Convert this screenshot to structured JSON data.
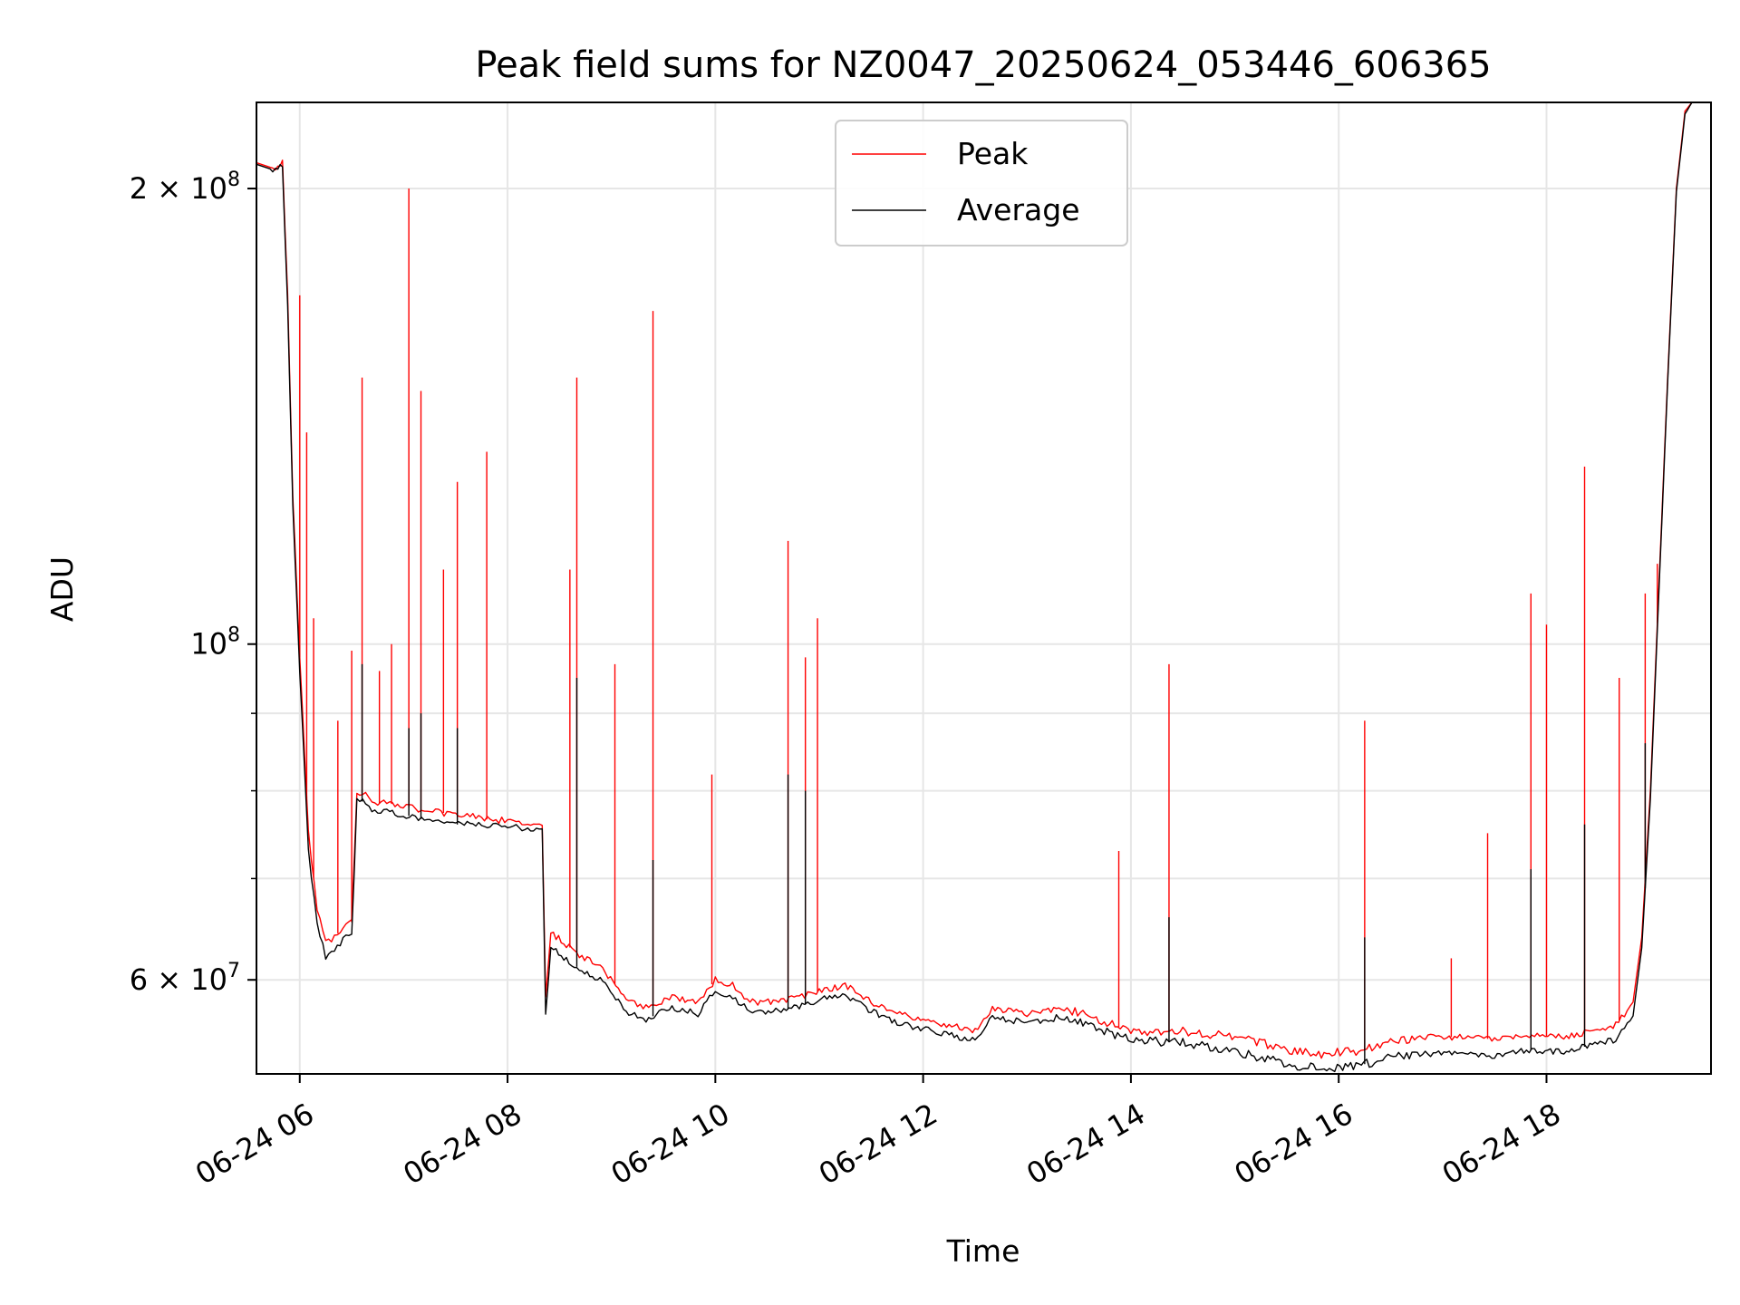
{
  "chart_data": {
    "type": "line",
    "title": "Peak field sums for NZ0047_20250624_053446_606365",
    "xlabel": "Time",
    "ylabel": "ADU",
    "yscale": "log",
    "grid": true,
    "legend_position": "upper center",
    "xlim": [
      "2025-06-24 05:35",
      "2025-06-24 19:35"
    ],
    "ylim": [
      52000000,
      228000000
    ],
    "x_ticks": [
      {
        "value": "2025-06-24 06:00",
        "label": "06-24 06"
      },
      {
        "value": "2025-06-24 08:00",
        "label": "06-24 08"
      },
      {
        "value": "2025-06-24 10:00",
        "label": "06-24 10"
      },
      {
        "value": "2025-06-24 12:00",
        "label": "06-24 12"
      },
      {
        "value": "2025-06-24 14:00",
        "label": "06-24 14"
      },
      {
        "value": "2025-06-24 16:00",
        "label": "06-24 16"
      },
      {
        "value": "2025-06-24 18:00",
        "label": "06-24 18"
      }
    ],
    "y_major_ticks": [
      {
        "value": 60000000,
        "mantissa": "6",
        "base": "10",
        "exp": "7"
      },
      {
        "value": 100000000,
        "mantissa": "",
        "base": "10",
        "exp": "8"
      },
      {
        "value": 200000000,
        "mantissa": "2",
        "base": "10",
        "exp": "8"
      }
    ],
    "y_minor_ticks": [
      70000000,
      80000000,
      90000000
    ],
    "series": [
      {
        "name": "Peak",
        "color": "#ff0000",
        "x": [
          "2025-06-24 05:35",
          "2025-06-24 05:46",
          "2025-06-24 05:50",
          "2025-06-24 05:53",
          "2025-06-24 05:56",
          "2025-06-24 06:00",
          "2025-06-24 06:05",
          "2025-06-24 06:10",
          "2025-06-24 06:15",
          "2025-06-24 06:20",
          "2025-06-24 06:25",
          "2025-06-24 06:30",
          "2025-06-24 06:33",
          "2025-06-24 06:38",
          "2025-06-24 06:40",
          "2025-06-24 06:45",
          "2025-06-24 06:52",
          "2025-06-24 06:58",
          "2025-06-24 07:05",
          "2025-06-24 07:12",
          "2025-06-24 07:20",
          "2025-06-24 07:30",
          "2025-06-24 07:40",
          "2025-06-24 07:50",
          "2025-06-24 08:00",
          "2025-06-24 08:10",
          "2025-06-24 08:20",
          "2025-06-24 08:22",
          "2025-06-24 08:25",
          "2025-06-24 08:40",
          "2025-06-24 08:55",
          "2025-06-24 09:10",
          "2025-06-24 09:20",
          "2025-06-24 09:35",
          "2025-06-24 09:50",
          "2025-06-24 10:00",
          "2025-06-24 10:10",
          "2025-06-24 10:20",
          "2025-06-24 10:35",
          "2025-06-24 10:50",
          "2025-06-24 11:00",
          "2025-06-24 11:15",
          "2025-06-24 11:30",
          "2025-06-24 11:45",
          "2025-06-24 12:00",
          "2025-06-24 12:15",
          "2025-06-24 12:30",
          "2025-06-24 12:40",
          "2025-06-24 13:00",
          "2025-06-24 13:20",
          "2025-06-24 13:40",
          "2025-06-24 14:00",
          "2025-06-24 14:30",
          "2025-06-24 15:00",
          "2025-06-24 15:30",
          "2025-06-24 15:50",
          "2025-06-24 16:10",
          "2025-06-24 16:30",
          "2025-06-24 16:50",
          "2025-06-24 17:10",
          "2025-06-24 17:30",
          "2025-06-24 17:50",
          "2025-06-24 18:10",
          "2025-06-24 18:25",
          "2025-06-24 18:40",
          "2025-06-24 18:50",
          "2025-06-24 18:55",
          "2025-06-24 19:00",
          "2025-06-24 19:05",
          "2025-06-24 19:10",
          "2025-06-24 19:15",
          "2025-06-24 19:20",
          "2025-06-24 19:24",
          "2025-06-24 19:28"
        ],
        "y": [
          208000000,
          206000000,
          208000000,
          170000000,
          125000000,
          98000000,
          75000000,
          67000000,
          63500000,
          64000000,
          65000000,
          65500000,
          80000000,
          79500000,
          79000000,
          78500000,
          78500000,
          78000000,
          78000000,
          77500000,
          77500000,
          77000000,
          77000000,
          76500000,
          76500000,
          76000000,
          76000000,
          58500000,
          64500000,
          62500000,
          61000000,
          58000000,
          57500000,
          58500000,
          58000000,
          60000000,
          59500000,
          58000000,
          58000000,
          58500000,
          59000000,
          59500000,
          58000000,
          57000000,
          56500000,
          56000000,
          55500000,
          57500000,
          57000000,
          57500000,
          56500000,
          55500000,
          55500000,
          55000000,
          54000000,
          53600000,
          53800000,
          54500000,
          55000000,
          55000000,
          54800000,
          55200000,
          55000000,
          55500000,
          56000000,
          58000000,
          64000000,
          80000000,
          110000000,
          150000000,
          200000000,
          225000000,
          228000000,
          228000000
        ],
        "spikes": [
          {
            "x": "2025-06-24 06:00",
            "y": 170000000
          },
          {
            "x": "2025-06-24 06:04",
            "y": 138000000
          },
          {
            "x": "2025-06-24 06:08",
            "y": 104000000
          },
          {
            "x": "2025-06-24 06:22",
            "y": 89000000
          },
          {
            "x": "2025-06-24 06:30",
            "y": 99000000
          },
          {
            "x": "2025-06-24 06:36",
            "y": 150000000
          },
          {
            "x": "2025-06-24 06:46",
            "y": 96000000
          },
          {
            "x": "2025-06-24 06:53",
            "y": 100000000
          },
          {
            "x": "2025-06-24 07:03",
            "y": 200000000
          },
          {
            "x": "2025-06-24 07:10",
            "y": 147000000
          },
          {
            "x": "2025-06-24 07:23",
            "y": 112000000
          },
          {
            "x": "2025-06-24 07:31",
            "y": 128000000
          },
          {
            "x": "2025-06-24 07:48",
            "y": 134000000
          },
          {
            "x": "2025-06-24 08:36",
            "y": 112000000
          },
          {
            "x": "2025-06-24 08:40",
            "y": 150000000
          },
          {
            "x": "2025-06-24 09:02",
            "y": 97000000
          },
          {
            "x": "2025-06-24 09:24",
            "y": 166000000
          },
          {
            "x": "2025-06-24 09:58",
            "y": 82000000
          },
          {
            "x": "2025-06-24 10:42",
            "y": 117000000
          },
          {
            "x": "2025-06-24 10:52",
            "y": 98000000
          },
          {
            "x": "2025-06-24 10:59",
            "y": 104000000
          },
          {
            "x": "2025-06-24 13:53",
            "y": 73000000
          },
          {
            "x": "2025-06-24 14:22",
            "y": 97000000
          },
          {
            "x": "2025-06-24 16:15",
            "y": 89000000
          },
          {
            "x": "2025-06-24 17:05",
            "y": 62000000
          },
          {
            "x": "2025-06-24 17:26",
            "y": 75000000
          },
          {
            "x": "2025-06-24 17:51",
            "y": 108000000
          },
          {
            "x": "2025-06-24 18:00",
            "y": 103000000
          },
          {
            "x": "2025-06-24 18:22",
            "y": 131000000
          },
          {
            "x": "2025-06-24 18:42",
            "y": 95000000
          },
          {
            "x": "2025-06-24 18:57",
            "y": 108000000
          },
          {
            "x": "2025-06-24 19:04",
            "y": 113000000
          }
        ]
      },
      {
        "name": "Average",
        "color": "#000000",
        "x": [
          "2025-06-24 05:35",
          "2025-06-24 05:46",
          "2025-06-24 05:50",
          "2025-06-24 05:53",
          "2025-06-24 05:56",
          "2025-06-24 06:00",
          "2025-06-24 06:05",
          "2025-06-24 06:10",
          "2025-06-24 06:15",
          "2025-06-24 06:20",
          "2025-06-24 06:25",
          "2025-06-24 06:30",
          "2025-06-24 06:33",
          "2025-06-24 06:38",
          "2025-06-24 06:40",
          "2025-06-24 06:45",
          "2025-06-24 06:52",
          "2025-06-24 06:58",
          "2025-06-24 07:05",
          "2025-06-24 07:12",
          "2025-06-24 07:20",
          "2025-06-24 07:30",
          "2025-06-24 07:40",
          "2025-06-24 07:50",
          "2025-06-24 08:00",
          "2025-06-24 08:10",
          "2025-06-24 08:20",
          "2025-06-24 08:22",
          "2025-06-24 08:25",
          "2025-06-24 08:40",
          "2025-06-24 08:55",
          "2025-06-24 09:10",
          "2025-06-24 09:20",
          "2025-06-24 09:35",
          "2025-06-24 09:50",
          "2025-06-24 10:00",
          "2025-06-24 10:10",
          "2025-06-24 10:20",
          "2025-06-24 10:35",
          "2025-06-24 10:50",
          "2025-06-24 11:00",
          "2025-06-24 11:15",
          "2025-06-24 11:30",
          "2025-06-24 11:45",
          "2025-06-24 12:00",
          "2025-06-24 12:15",
          "2025-06-24 12:30",
          "2025-06-24 12:40",
          "2025-06-24 13:00",
          "2025-06-24 13:20",
          "2025-06-24 13:40",
          "2025-06-24 14:00",
          "2025-06-24 14:30",
          "2025-06-24 15:00",
          "2025-06-24 15:30",
          "2025-06-24 15:50",
          "2025-06-24 16:10",
          "2025-06-24 16:30",
          "2025-06-24 16:50",
          "2025-06-24 17:10",
          "2025-06-24 17:30",
          "2025-06-24 17:50",
          "2025-06-24 18:10",
          "2025-06-24 18:25",
          "2025-06-24 18:40",
          "2025-06-24 18:50",
          "2025-06-24 18:55",
          "2025-06-24 19:00",
          "2025-06-24 19:05",
          "2025-06-24 19:10",
          "2025-06-24 19:15",
          "2025-06-24 19:20",
          "2025-06-24 19:24",
          "2025-06-24 19:28"
        ],
        "y": [
          207500000,
          205500000,
          207500000,
          168000000,
          123000000,
          96000000,
          73000000,
          65500000,
          62000000,
          62800000,
          63800000,
          64200000,
          79000000,
          78500000,
          78000000,
          77500000,
          77500000,
          77000000,
          77000000,
          76500000,
          76500000,
          76000000,
          76000000,
          75800000,
          75800000,
          75500000,
          75300000,
          57000000,
          63000000,
          61200000,
          59800000,
          57000000,
          56500000,
          57500000,
          57000000,
          59000000,
          58500000,
          57200000,
          57200000,
          57700000,
          58200000,
          58700000,
          57200000,
          56200000,
          55700000,
          55200000,
          54700000,
          56700000,
          56200000,
          56700000,
          55700000,
          54800000,
          54500000,
          53800000,
          52800000,
          52400000,
          52600000,
          53300000,
          53600000,
          53600000,
          53500000,
          53900000,
          53800000,
          54300000,
          54800000,
          56800000,
          63000000,
          79000000,
          109000000,
          149000000,
          199000000,
          224000000,
          228000000,
          228000000
        ],
        "spikes": [
          {
            "x": "2025-06-24 06:36",
            "y": 97000000
          },
          {
            "x": "2025-06-24 07:03",
            "y": 88000000
          },
          {
            "x": "2025-06-24 07:10",
            "y": 90000000
          },
          {
            "x": "2025-06-24 07:31",
            "y": 88000000
          },
          {
            "x": "2025-06-24 08:40",
            "y": 95000000
          },
          {
            "x": "2025-06-24 09:24",
            "y": 72000000
          },
          {
            "x": "2025-06-24 10:42",
            "y": 82000000
          },
          {
            "x": "2025-06-24 10:52",
            "y": 80000000
          },
          {
            "x": "2025-06-24 14:22",
            "y": 66000000
          },
          {
            "x": "2025-06-24 16:15",
            "y": 64000000
          },
          {
            "x": "2025-06-24 17:51",
            "y": 71000000
          },
          {
            "x": "2025-06-24 18:22",
            "y": 76000000
          },
          {
            "x": "2025-06-24 18:57",
            "y": 86000000
          }
        ]
      }
    ]
  }
}
